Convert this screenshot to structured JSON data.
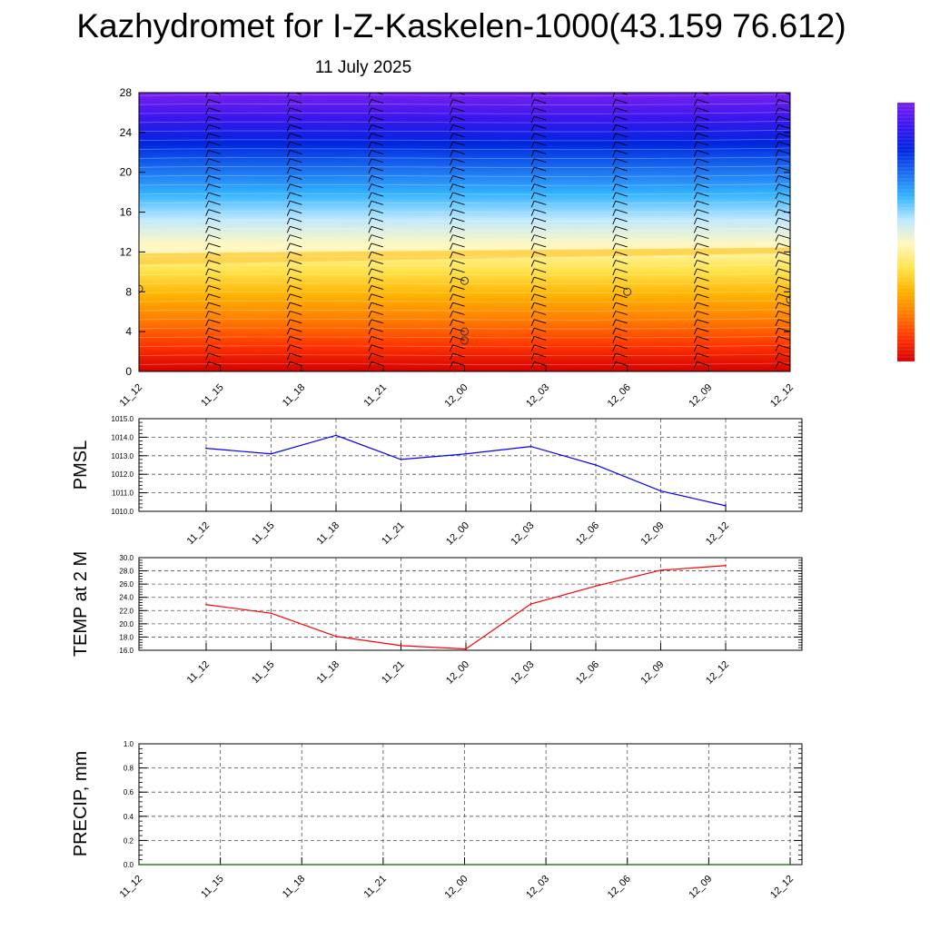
{
  "page": {
    "title": "Kazhydromet for I-Z-Kaskelen-1000(43.159 76.612)",
    "date": "11 July 2025"
  },
  "chart_data": [
    {
      "id": "height-time-section",
      "type": "heatmap",
      "x_tick_labels": [
        "11_12",
        "11_15",
        "11_18",
        "11_21",
        "12_00",
        "12_03",
        "12_06",
        "12_09",
        "12_12"
      ],
      "y_ticks": [
        0,
        4,
        8,
        12,
        16,
        20,
        24,
        28
      ],
      "ylim": [
        0,
        28
      ],
      "color_scale": [
        "#d40000",
        "#ff3300",
        "#ff7a00",
        "#ffb300",
        "#ffe44d",
        "#fff8c0",
        "#bfe8ff",
        "#33b4ff",
        "#1a6ef0",
        "#0026e0",
        "#3a16f0",
        "#7a1ff0"
      ],
      "temperature_isotherm_break": {
        "x_start": 12.2,
        "x_end": 12.8
      },
      "annotations": [
        {
          "type": "circle-marker",
          "x": "12_00",
          "y": 9.1
        },
        {
          "type": "circle-marker",
          "x": "12_00",
          "y": 4.0
        },
        {
          "type": "circle-marker",
          "x": "12_00",
          "y": 3.1
        },
        {
          "type": "circle-marker",
          "x": "12_06",
          "y": 8.0
        },
        {
          "type": "circle-marker",
          "x": "12_12",
          "y": 7.2
        },
        {
          "type": "circle-marker",
          "x": "11_12",
          "y": 8.3
        }
      ]
    },
    {
      "id": "pmsl",
      "type": "line",
      "ylabel": "PMSL",
      "ylim": [
        1010.0,
        1015.0
      ],
      "y_tick_labels": [
        "1010.0",
        "1011.0",
        "1012.0",
        "1013.0",
        "1014.0",
        "1015.0"
      ],
      "categories": [
        "11_12",
        "11_15",
        "11_18",
        "11_21",
        "12_00",
        "12_03",
        "12_06",
        "12_09",
        "12_12"
      ],
      "values": [
        1013.4,
        1013.1,
        1014.1,
        1012.8,
        1013.1,
        1013.5,
        1012.5,
        1011.1,
        1010.3
      ],
      "line_color": "#0000ff",
      "grid": true
    },
    {
      "id": "temp-2m",
      "type": "line",
      "ylabel": "TEMP at 2 M",
      "ylim": [
        16.0,
        30.0
      ],
      "y_tick_labels": [
        "16.0",
        "18.0",
        "20.0",
        "22.0",
        "24.0",
        "26.0",
        "28.0",
        "30.0"
      ],
      "categories": [
        "11_12",
        "11_15",
        "11_18",
        "11_21",
        "12_00",
        "12_03",
        "12_06",
        "12_09",
        "12_12"
      ],
      "values": [
        22.9,
        21.6,
        18.1,
        16.7,
        16.2,
        23.0,
        25.7,
        28.1,
        28.8
      ],
      "line_color": "#ff0000",
      "grid": true
    },
    {
      "id": "precip",
      "type": "line",
      "ylabel": "PRECIP, mm",
      "ylim": [
        0.0,
        1.0
      ],
      "y_tick_labels": [
        "0.0",
        "0.2",
        "0.4",
        "0.6",
        "0.8",
        "1.0"
      ],
      "categories": [
        "11_12",
        "11_15",
        "11_18",
        "11_21",
        "12_00",
        "12_03",
        "12_06",
        "12_09",
        "12_12"
      ],
      "values": [
        0,
        0,
        0,
        0,
        0,
        0,
        0,
        0,
        0
      ],
      "line_color": "#006400",
      "grid": true
    }
  ]
}
